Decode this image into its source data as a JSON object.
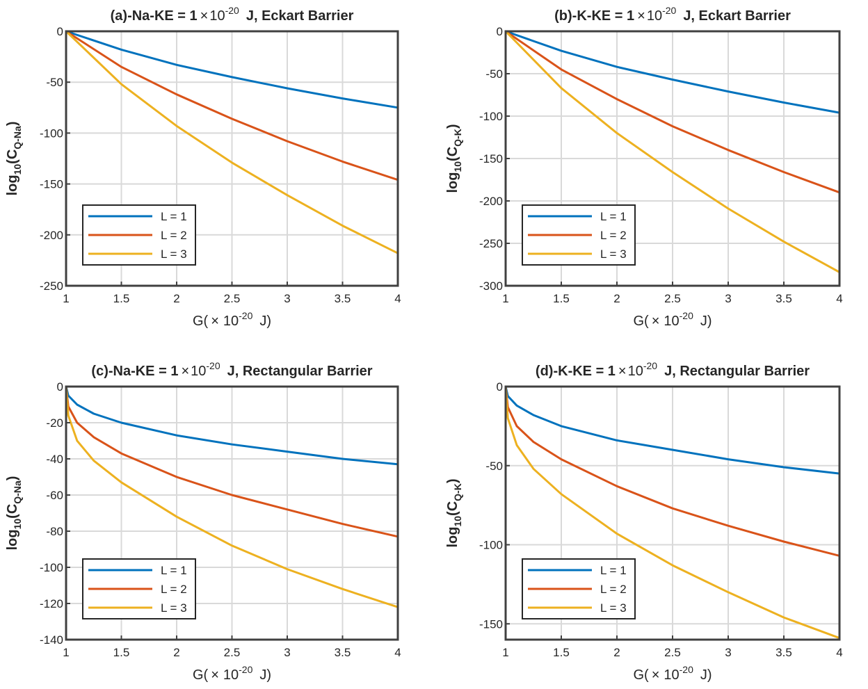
{
  "chart_data": [
    {
      "panel": "a",
      "type": "line",
      "title_prefix": "(a)-Na-KE = 1",
      "title_times": "×",
      "title_base": "10",
      "title_exp": "-20",
      "title_suffix": "J, Eckart Barrier",
      "xlabel": {
        "pre": "G(",
        "times": "×",
        "base": "10",
        "exp": "-20",
        "post": "J)"
      },
      "ylabel": {
        "pre": "log",
        "sub1": "10",
        "mid": "(C",
        "sub2": "Q-Na",
        "post": ")"
      },
      "xlim": [
        1,
        4
      ],
      "ylim": [
        -250,
        0
      ],
      "xticks": [
        1,
        1.5,
        2,
        2.5,
        3,
        3.5,
        4
      ],
      "yticks": [
        -250,
        -200,
        -150,
        -100,
        -50,
        0
      ],
      "grid": true,
      "legend_position": "bottom-left",
      "series": [
        {
          "name": "L = 1",
          "color": "#0072BD",
          "x": [
            1,
            1.5,
            2,
            2.5,
            3,
            3.5,
            4
          ],
          "values": [
            0,
            -18,
            -33,
            -45,
            -56,
            -66,
            -75
          ]
        },
        {
          "name": "L = 2",
          "color": "#D95319",
          "x": [
            1,
            1.5,
            2,
            2.5,
            3,
            3.5,
            4
          ],
          "values": [
            0,
            -35,
            -62,
            -86,
            -108,
            -128,
            -146
          ]
        },
        {
          "name": "L = 3",
          "color": "#EDB120",
          "x": [
            1,
            1.5,
            2,
            2.5,
            3,
            3.5,
            4
          ],
          "values": [
            0,
            -52,
            -93,
            -129,
            -161,
            -191,
            -218
          ]
        }
      ]
    },
    {
      "panel": "b",
      "type": "line",
      "title_prefix": "(b)-K-KE = 1",
      "title_times": "×",
      "title_base": "10",
      "title_exp": "-20",
      "title_suffix": "J, Eckart Barrier",
      "xlabel": {
        "pre": "G(",
        "times": "×",
        "base": "10",
        "exp": "-20",
        "post": "J)"
      },
      "ylabel": {
        "pre": "log",
        "sub1": "10",
        "mid": "(C",
        "sub2": "Q-K",
        "post": ")"
      },
      "xlim": [
        1,
        4
      ],
      "ylim": [
        -300,
        0
      ],
      "xticks": [
        1,
        1.5,
        2,
        2.5,
        3,
        3.5,
        4
      ],
      "yticks": [
        -300,
        -250,
        -200,
        -150,
        -100,
        -50,
        0
      ],
      "grid": true,
      "legend_position": "bottom-left",
      "series": [
        {
          "name": "L = 1",
          "color": "#0072BD",
          "x": [
            1,
            1.5,
            2,
            2.5,
            3,
            3.5,
            4
          ],
          "values": [
            0,
            -23,
            -42,
            -57,
            -71,
            -84,
            -96
          ]
        },
        {
          "name": "L = 2",
          "color": "#D95319",
          "x": [
            1,
            1.5,
            2,
            2.5,
            3,
            3.5,
            4
          ],
          "values": [
            0,
            -45,
            -80,
            -112,
            -140,
            -166,
            -190
          ]
        },
        {
          "name": "L = 3",
          "color": "#EDB120",
          "x": [
            1,
            1.5,
            2,
            2.5,
            3,
            3.5,
            4
          ],
          "values": [
            0,
            -67,
            -120,
            -166,
            -209,
            -248,
            -284
          ]
        }
      ]
    },
    {
      "panel": "c",
      "type": "line",
      "title_prefix": "(c)-Na-KE = 1",
      "title_times": "×",
      "title_base": "10",
      "title_exp": "-20",
      "title_suffix": "J, Rectangular Barrier",
      "xlabel": {
        "pre": "G(",
        "times": "×",
        "base": "10",
        "exp": "-20",
        "post": "J)"
      },
      "ylabel": {
        "pre": "log",
        "sub1": "10",
        "mid": "(C",
        "sub2": "Q-Na",
        "post": ")"
      },
      "xlim": [
        1,
        4
      ],
      "ylim": [
        -140,
        0
      ],
      "xticks": [
        1,
        1.5,
        2,
        2.5,
        3,
        3.5,
        4
      ],
      "yticks": [
        -140,
        -120,
        -100,
        -80,
        -60,
        -40,
        -20,
        0
      ],
      "grid": true,
      "legend_position": "bottom-left",
      "series": [
        {
          "name": "L = 1",
          "color": "#0072BD",
          "x": [
            1,
            1.02,
            1.1,
            1.25,
            1.5,
            2,
            2.5,
            3,
            3.5,
            4
          ],
          "values": [
            0,
            -5,
            -10,
            -15,
            -20,
            -27,
            -32,
            -36,
            -40,
            -43
          ]
        },
        {
          "name": "L = 2",
          "color": "#D95319",
          "x": [
            1,
            1.02,
            1.1,
            1.25,
            1.5,
            2,
            2.5,
            3,
            3.5,
            4
          ],
          "values": [
            0,
            -11,
            -20,
            -28,
            -37,
            -50,
            -60,
            -68,
            -76,
            -83
          ]
        },
        {
          "name": "L = 3",
          "color": "#EDB120",
          "x": [
            1,
            1.02,
            1.1,
            1.25,
            1.5,
            2,
            2.5,
            3,
            3.5,
            4
          ],
          "values": [
            0,
            -16,
            -30,
            -41,
            -53,
            -72,
            -88,
            -101,
            -112,
            -122
          ]
        }
      ]
    },
    {
      "panel": "d",
      "type": "line",
      "title_prefix": "(d)-K-KE = 1",
      "title_times": "×",
      "title_base": "10",
      "title_exp": "-20",
      "title_suffix": "J, Rectangular Barrier",
      "xlabel": {
        "pre": "G(",
        "times": "×",
        "base": "10",
        "exp": "-20",
        "post": "J)"
      },
      "ylabel": {
        "pre": "log",
        "sub1": "10",
        "mid": "(C",
        "sub2": "Q-K",
        "post": ")"
      },
      "xlim": [
        1,
        4
      ],
      "ylim": [
        -160,
        0
      ],
      "xticks": [
        1,
        1.5,
        2,
        2.5,
        3,
        3.5,
        4
      ],
      "yticks": [
        -150,
        -100,
        -50,
        0
      ],
      "grid": true,
      "legend_position": "bottom-left",
      "series": [
        {
          "name": "L = 1",
          "color": "#0072BD",
          "x": [
            1,
            1.02,
            1.1,
            1.25,
            1.5,
            2,
            2.5,
            3,
            3.5,
            4
          ],
          "values": [
            0,
            -6,
            -12,
            -18,
            -25,
            -34,
            -40,
            -46,
            -51,
            -55
          ]
        },
        {
          "name": "L = 2",
          "color": "#D95319",
          "x": [
            1,
            1.02,
            1.1,
            1.25,
            1.5,
            2,
            2.5,
            3,
            3.5,
            4
          ],
          "values": [
            0,
            -13,
            -25,
            -35,
            -46,
            -63,
            -77,
            -88,
            -98,
            -107
          ]
        },
        {
          "name": "L = 3",
          "color": "#EDB120",
          "x": [
            1,
            1.02,
            1.1,
            1.25,
            1.5,
            2,
            2.5,
            3,
            3.5,
            4
          ],
          "values": [
            0,
            -20,
            -37,
            -52,
            -68,
            -93,
            -113,
            -130,
            -146,
            -159
          ]
        }
      ]
    }
  ]
}
